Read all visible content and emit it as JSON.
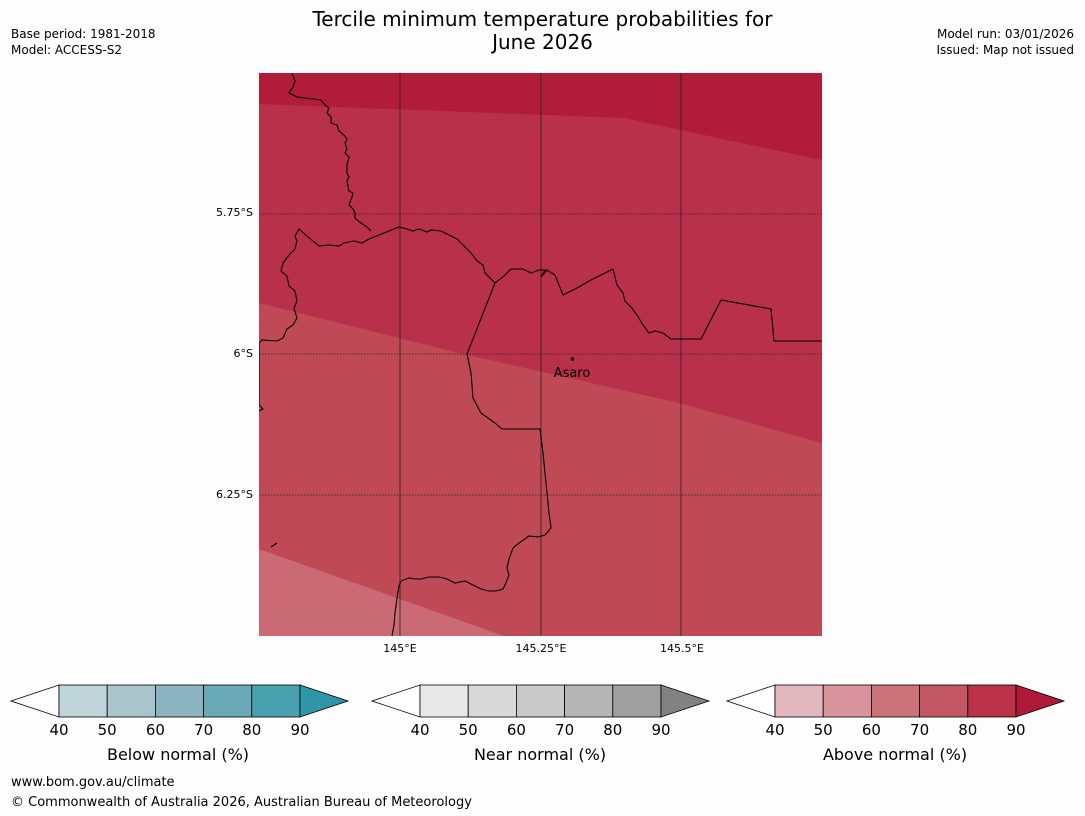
{
  "title_line1": "Tercile minimum temperature probabilities for",
  "title_line2": "June 2026",
  "meta": {
    "base_period": "Base period: 1981-2018",
    "model": "Model: ACCESS-S2",
    "model_run": "Model run: 03/01/2026",
    "issued": "Issued: Map not issued"
  },
  "map": {
    "lat_ticks": [
      "5.75°S",
      "6°S",
      "6.25°S"
    ],
    "lon_ticks": [
      "145°E",
      "145.25°E",
      "145.5°E"
    ],
    "place": {
      "name": "Asaro"
    },
    "colors": {
      "band_80_90": "#b01c3a",
      "band_70_80": "#b8304a",
      "band_60_70": "#bf4a55",
      "band_50_60": "#c96a74"
    }
  },
  "colorbars": [
    {
      "label": "Below normal (%)",
      "ticks": [
        "40",
        "50",
        "60",
        "70",
        "80",
        "90"
      ],
      "colors": [
        "#ffffff",
        "#bfd5da",
        "#a7c5cb",
        "#8ab4bf",
        "#6aaab8",
        "#47a1b0",
        "#2e96a8"
      ]
    },
    {
      "label": "Near normal (%)",
      "ticks": [
        "40",
        "50",
        "60",
        "70",
        "80",
        "90"
      ],
      "colors": [
        "#ffffff",
        "#e8e8e8",
        "#d9d9d9",
        "#c9c9c9",
        "#b5b5b5",
        "#a0a0a0",
        "#828282"
      ]
    },
    {
      "label": "Above normal (%)",
      "ticks": [
        "40",
        "50",
        "60",
        "70",
        "80",
        "90"
      ],
      "colors": [
        "#ffffff",
        "#e2b8be",
        "#d8949c",
        "#cc7279",
        "#c25663",
        "#bc3249",
        "#ad1a38"
      ]
    }
  ],
  "footer": {
    "url": "www.bom.gov.au/climate",
    "copyright": "© Commonwealth of Australia 2026, Australian Bureau of Meteorology"
  }
}
